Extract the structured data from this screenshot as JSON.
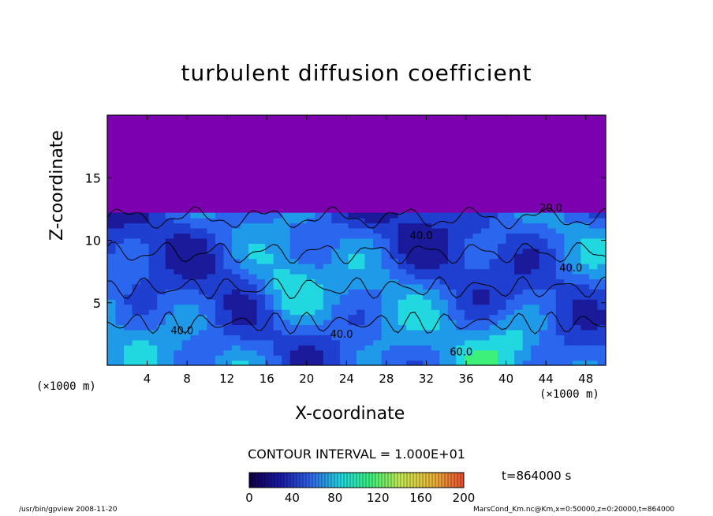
{
  "chart_data": {
    "type": "heatmap",
    "title": "turbulent diffusion coefficient",
    "xlabel": "X-coordinate",
    "ylabel": "Z-coordinate",
    "x_unit_label": "(×1000 m)",
    "x_unit_label_right": "(×1000 m)",
    "xlim": [
      0,
      50
    ],
    "ylim": [
      0,
      20
    ],
    "x_ticks": [
      4,
      8,
      12,
      16,
      20,
      24,
      28,
      32,
      36,
      40,
      44,
      48
    ],
    "y_ticks": [
      5,
      10,
      15
    ],
    "contour_interval_text": "CONTOUR INTERVAL = 1.000E+01",
    "contour_labels": [
      {
        "text": "40.0",
        "x": 7.5,
        "z": 2.5
      },
      {
        "text": "40.0",
        "x": 23.5,
        "z": 2.2
      },
      {
        "text": "40.0",
        "x": 31.5,
        "z": 10.1
      },
      {
        "text": "60.0",
        "x": 35.5,
        "z": 0.8
      },
      {
        "text": "20.0",
        "x": 44.5,
        "z": 12.3
      },
      {
        "text": "40.0",
        "x": 46.5,
        "z": 7.5
      }
    ],
    "colorbar": {
      "min": 0,
      "max": 200,
      "ticks": [
        0,
        40,
        80,
        120,
        160,
        200
      ],
      "colors": [
        "#10004a",
        "#1a1aa8",
        "#2f66e8",
        "#22d8e0",
        "#3cf07a",
        "#c8e850",
        "#e8b838",
        "#e85030"
      ]
    },
    "background_color": "#7c00b0",
    "time_label": "t=864000 s"
  },
  "footer": {
    "left": "/usr/bin/gpview  2008-11-20",
    "right": "MarsCond_Km.nc@Km,x=0:50000,z=0:20000,t=864000"
  }
}
